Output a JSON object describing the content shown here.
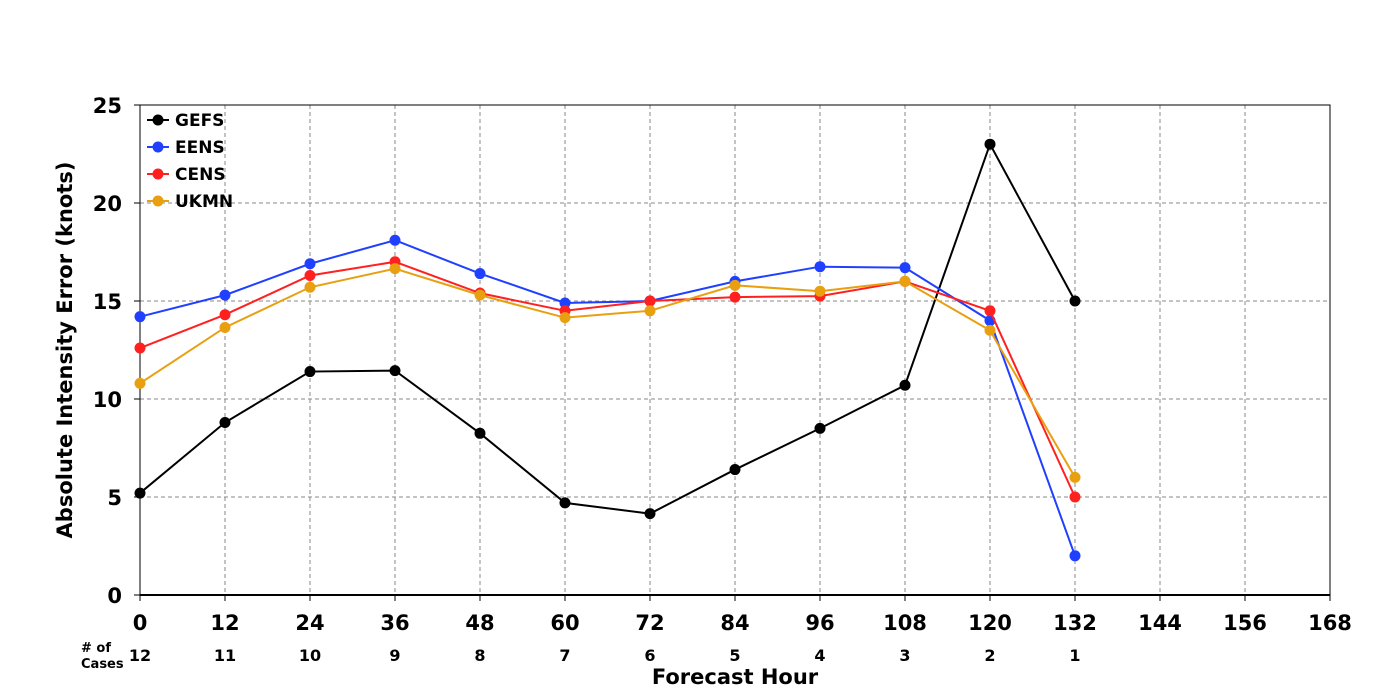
{
  "chart_data": {
    "type": "line",
    "xlabel": "Forecast Hour",
    "ylabel": "Absolute Intensity Error (knots)",
    "xlim": [
      0,
      168
    ],
    "ylim": [
      0,
      25
    ],
    "xticks": [
      0,
      12,
      24,
      36,
      48,
      60,
      72,
      84,
      96,
      108,
      120,
      132,
      144,
      156,
      168
    ],
    "yticks": [
      0,
      5,
      10,
      15,
      20,
      25
    ],
    "grid": true,
    "legend_position": "top-left",
    "x": [
      0,
      12,
      24,
      36,
      48,
      60,
      72,
      84,
      96,
      108,
      120,
      132
    ],
    "series": [
      {
        "name": "GEFS",
        "color": "#000000",
        "values": [
          5.2,
          8.8,
          11.4,
          11.45,
          8.25,
          4.7,
          4.15,
          6.4,
          8.5,
          10.7,
          23.0,
          15.0
        ]
      },
      {
        "name": "EENS",
        "color": "#2040ff",
        "values": [
          14.2,
          15.3,
          16.9,
          18.1,
          16.4,
          14.9,
          15.0,
          16.0,
          16.75,
          16.7,
          14.0,
          2.0
        ]
      },
      {
        "name": "CENS",
        "color": "#ff2020",
        "values": [
          12.6,
          14.3,
          16.3,
          17.0,
          15.4,
          14.5,
          15.0,
          15.2,
          15.25,
          16.0,
          14.5,
          5.0
        ]
      },
      {
        "name": "UKMN",
        "color": "#e8a010",
        "values": [
          10.8,
          13.65,
          15.7,
          16.65,
          15.3,
          14.15,
          14.5,
          15.8,
          15.5,
          16.0,
          13.5,
          6.0
        ]
      }
    ],
    "cases": {
      "label_line1": "# of",
      "label_line2": "Cases",
      "x": [
        0,
        12,
        24,
        36,
        48,
        60,
        72,
        84,
        96,
        108,
        120,
        132
      ],
      "values": [
        "12",
        "11",
        "10",
        "9",
        "8",
        "7",
        "6",
        "5",
        "4",
        "3",
        "2",
        "1"
      ]
    }
  }
}
